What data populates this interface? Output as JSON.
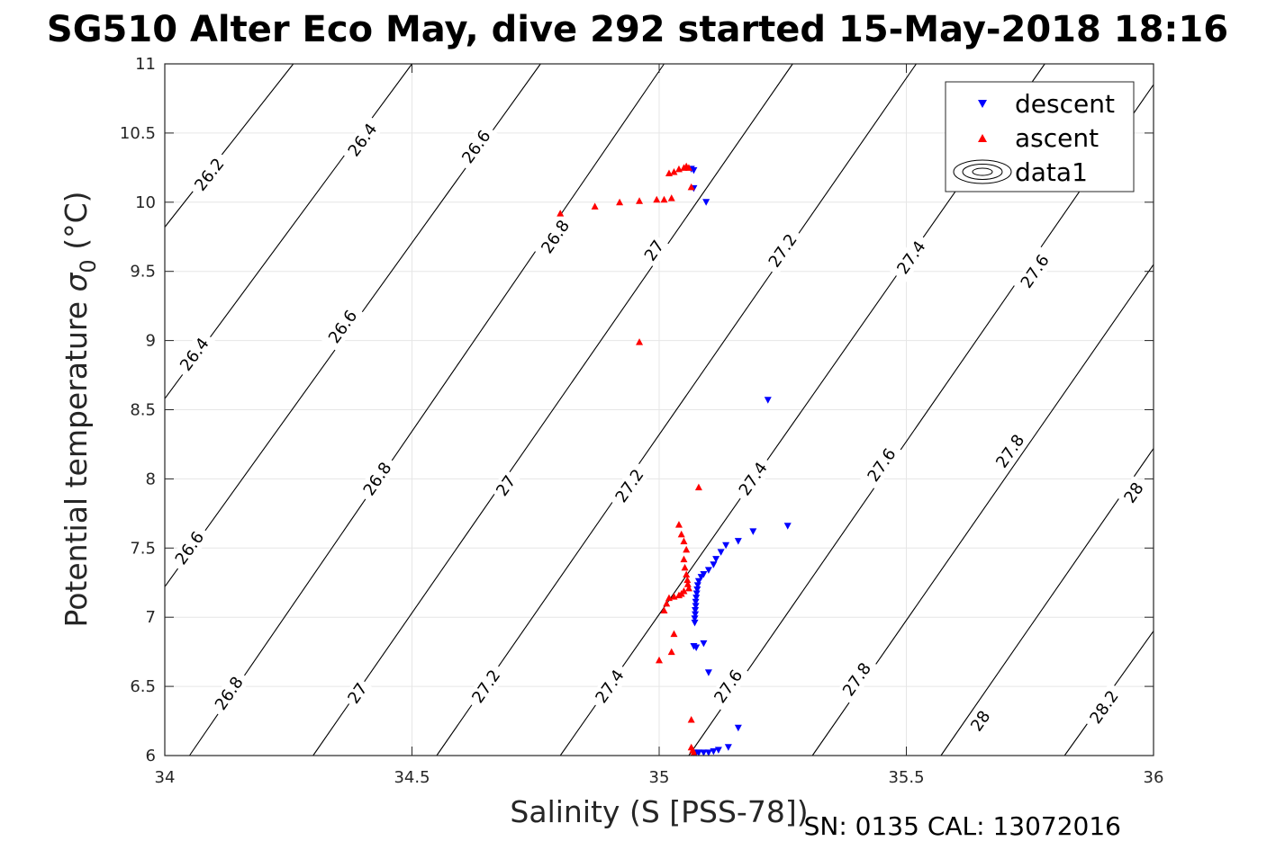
{
  "chart_data": {
    "type": "scatter",
    "title": "SG510 Alter Eco May, dive 292 started 15-May-2018 18:16",
    "xlabel": "Salinity (S [PSS-78])",
    "ylabel_main": "Potential temperature ",
    "ylabel_sigma": "σ",
    "ylabel_sub": "0",
    "ylabel_unit": " (°C)",
    "footer": "SN: 0135  CAL: 13072016",
    "xlim": [
      34,
      36
    ],
    "ylim": [
      6,
      11
    ],
    "xticks": [
      34,
      34.5,
      35,
      35.5,
      36
    ],
    "xtick_labels": [
      "34",
      "34.5",
      "35",
      "35.5",
      "36"
    ],
    "yticks": [
      6,
      6.5,
      7,
      7.5,
      8,
      8.5,
      9,
      9.5,
      10,
      10.5,
      11
    ],
    "ytick_labels": [
      "6",
      "6.5",
      "7",
      "7.5",
      "8",
      "8.5",
      "9",
      "9.5",
      "10",
      "10.5",
      "11"
    ],
    "grid": true,
    "legend_position": "top-right",
    "series": [
      {
        "name": "descent",
        "marker": "triangle-down",
        "color": "#0000ff",
        "points": [
          [
            35.07,
            10.23
          ],
          [
            35.065,
            10.24
          ],
          [
            35.07,
            10.1
          ],
          [
            35.095,
            10.0
          ],
          [
            35.22,
            8.57
          ],
          [
            35.26,
            7.66
          ],
          [
            35.19,
            7.62
          ],
          [
            35.16,
            7.55
          ],
          [
            35.135,
            7.52
          ],
          [
            35.125,
            7.47
          ],
          [
            35.115,
            7.42
          ],
          [
            35.11,
            7.38
          ],
          [
            35.1,
            7.34
          ],
          [
            35.09,
            7.31
          ],
          [
            35.085,
            7.29
          ],
          [
            35.08,
            7.26
          ],
          [
            35.078,
            7.23
          ],
          [
            35.077,
            7.2
          ],
          [
            35.076,
            7.17
          ],
          [
            35.075,
            7.14
          ],
          [
            35.074,
            7.11
          ],
          [
            35.074,
            7.08
          ],
          [
            35.073,
            7.05
          ],
          [
            35.073,
            7.02
          ],
          [
            35.072,
            6.99
          ],
          [
            35.072,
            6.96
          ],
          [
            35.07,
            6.79
          ],
          [
            35.075,
            6.78
          ],
          [
            35.09,
            6.81
          ],
          [
            35.1,
            6.6
          ],
          [
            35.16,
            6.2
          ],
          [
            35.14,
            6.06
          ],
          [
            35.12,
            6.04
          ],
          [
            35.11,
            6.03
          ],
          [
            35.1,
            6.02
          ],
          [
            35.09,
            6.02
          ],
          [
            35.08,
            6.02
          ],
          [
            35.075,
            6.02
          ],
          [
            35.07,
            6.02
          ]
        ]
      },
      {
        "name": "ascent",
        "marker": "triangle-up",
        "color": "#ff0000",
        "points": [
          [
            34.8,
            9.92
          ],
          [
            34.87,
            9.97
          ],
          [
            34.92,
            10.0
          ],
          [
            34.96,
            10.01
          ],
          [
            34.995,
            10.02
          ],
          [
            35.01,
            10.02
          ],
          [
            35.025,
            10.03
          ],
          [
            35.02,
            10.21
          ],
          [
            35.03,
            10.22
          ],
          [
            35.04,
            10.24
          ],
          [
            35.05,
            10.25
          ],
          [
            35.06,
            10.25
          ],
          [
            35.055,
            10.26
          ],
          [
            35.065,
            10.11
          ],
          [
            34.96,
            8.99
          ],
          [
            35.08,
            7.94
          ],
          [
            35.04,
            7.67
          ],
          [
            35.045,
            7.6
          ],
          [
            35.05,
            7.55
          ],
          [
            35.055,
            7.49
          ],
          [
            35.05,
            7.42
          ],
          [
            35.052,
            7.36
          ],
          [
            35.055,
            7.31
          ],
          [
            35.057,
            7.27
          ],
          [
            35.058,
            7.24
          ],
          [
            35.06,
            7.21
          ],
          [
            35.05,
            7.19
          ],
          [
            35.045,
            7.17
          ],
          [
            35.04,
            7.16
          ],
          [
            35.03,
            7.15
          ],
          [
            35.02,
            7.14
          ],
          [
            35.015,
            7.1
          ],
          [
            35.01,
            7.05
          ],
          [
            35.03,
            6.88
          ],
          [
            35.025,
            6.75
          ],
          [
            35.0,
            6.69
          ],
          [
            35.065,
            6.26
          ],
          [
            35.065,
            6.06
          ],
          [
            35.068,
            6.04
          ],
          [
            35.07,
            6.02
          ]
        ]
      },
      {
        "name": "data1",
        "marker": "contour",
        "color": "#000000",
        "contours": [
          {
            "level": "26.2",
            "points": [
              [
                34.0,
                9.82
              ],
              [
                34.26,
                11.0
              ]
            ],
            "labels": [
              [
                34.09,
                10.2
              ]
            ]
          },
          {
            "level": "26.4",
            "points": [
              [
                34.0,
                8.58
              ],
              [
                34.5,
                11.0
              ]
            ],
            "labels": [
              [
                34.06,
                8.9
              ],
              [
                34.4,
                10.45
              ]
            ]
          },
          {
            "level": "26.6",
            "points": [
              [
                34.0,
                7.22
              ],
              [
                34.76,
                11.0
              ]
            ],
            "labels": [
              [
                34.05,
                7.5
              ],
              [
                34.36,
                9.1
              ],
              [
                34.63,
                10.4
              ]
            ]
          },
          {
            "level": "26.8",
            "points": [
              [
                34.05,
                6.0
              ],
              [
                35.01,
                11.0
              ]
            ],
            "labels": [
              [
                34.13,
                6.45
              ],
              [
                34.43,
                8.0
              ],
              [
                34.79,
                9.75
              ]
            ]
          },
          {
            "level": "27",
            "points": [
              [
                34.3,
                6.0
              ],
              [
                35.27,
                11.0
              ]
            ],
            "labels": [
              [
                34.39,
                6.45
              ],
              [
                34.69,
                7.95
              ],
              [
                34.99,
                9.65
              ]
            ]
          },
          {
            "level": "27.2",
            "points": [
              [
                34.55,
                6.0
              ],
              [
                35.52,
                11.0
              ]
            ],
            "labels": [
              [
                34.65,
                6.5
              ],
              [
                34.94,
                7.95
              ],
              [
                35.25,
                9.65
              ]
            ]
          },
          {
            "level": "27.4",
            "points": [
              [
                34.8,
                6.0
              ],
              [
                35.78,
                11.0
              ]
            ],
            "labels": [
              [
                34.9,
                6.5
              ],
              [
                35.19,
                8.0
              ],
              [
                35.51,
                9.6
              ]
            ]
          },
          {
            "level": "27.6",
            "points": [
              [
                35.06,
                6.0
              ],
              [
                36.0,
                10.85
              ]
            ],
            "labels": [
              [
                35.14,
                6.5
              ],
              [
                35.45,
                8.1
              ],
              [
                35.76,
                9.5
              ]
            ]
          },
          {
            "level": "27.8",
            "points": [
              [
                35.31,
                6.0
              ],
              [
                36.0,
                9.55
              ]
            ],
            "labels": [
              [
                35.4,
                6.55
              ],
              [
                35.71,
                8.2
              ]
            ]
          },
          {
            "level": "28",
            "points": [
              [
                35.57,
                6.0
              ],
              [
                36.0,
                8.22
              ]
            ],
            "labels": [
              [
                35.65,
                6.25
              ],
              [
                35.96,
                7.9
              ]
            ]
          },
          {
            "level": "28.2",
            "points": [
              [
                35.82,
                6.0
              ],
              [
                36.0,
                6.9
              ]
            ],
            "labels": [
              [
                35.9,
                6.35
              ]
            ]
          }
        ]
      }
    ]
  }
}
